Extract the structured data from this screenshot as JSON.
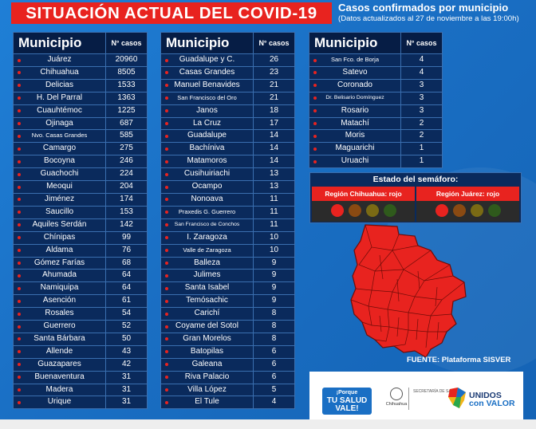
{
  "title": "SITUACIÓN ACTUAL DEL COVID-19",
  "subtitle": {
    "line1": "Casos confirmados por municipio",
    "line2": "(Datos actualizados al 27 de noviembre a las 19:00h)"
  },
  "table_headers": {
    "municipio": "Municipio",
    "casos": "N° casos"
  },
  "table1": [
    {
      "name": "Juárez",
      "cases": "20960"
    },
    {
      "name": "Chihuahua",
      "cases": "8505"
    },
    {
      "name": "Delicias",
      "cases": "1533"
    },
    {
      "name": "H. Del Parral",
      "cases": "1363"
    },
    {
      "name": "Cuauhtémoc",
      "cases": "1225"
    },
    {
      "name": "Ojinaga",
      "cases": "687"
    },
    {
      "name": "Nvo. Casas Grandes",
      "cases": "585"
    },
    {
      "name": "Camargo",
      "cases": "275"
    },
    {
      "name": "Bocoyna",
      "cases": "246"
    },
    {
      "name": "Guachochi",
      "cases": "224"
    },
    {
      "name": "Meoqui",
      "cases": "204"
    },
    {
      "name": "Jiménez",
      "cases": "174"
    },
    {
      "name": "Saucillo",
      "cases": "153"
    },
    {
      "name": "Aquiles Serdán",
      "cases": "142"
    },
    {
      "name": "Chínipas",
      "cases": "99"
    },
    {
      "name": "Aldama",
      "cases": "76"
    },
    {
      "name": "Gómez Farías",
      "cases": "68"
    },
    {
      "name": "Ahumada",
      "cases": "64"
    },
    {
      "name": "Namiquipa",
      "cases": "64"
    },
    {
      "name": "Asención",
      "cases": "61"
    },
    {
      "name": "Rosales",
      "cases": "54"
    },
    {
      "name": "Guerrero",
      "cases": "52"
    },
    {
      "name": "Santa Bárbara",
      "cases": "50"
    },
    {
      "name": "Allende",
      "cases": "43"
    },
    {
      "name": "Guazapares",
      "cases": "42"
    },
    {
      "name": "Buenaventura",
      "cases": "31"
    },
    {
      "name": "Madera",
      "cases": "31"
    },
    {
      "name": "Urique",
      "cases": "31"
    }
  ],
  "table2": [
    {
      "name": "Guadalupe y C.",
      "cases": "26"
    },
    {
      "name": "Casas Grandes",
      "cases": "23"
    },
    {
      "name": "Manuel Benavides",
      "cases": "21"
    },
    {
      "name": "San Francisco del Oro",
      "cases": "21"
    },
    {
      "name": "Janos",
      "cases": "18"
    },
    {
      "name": "La Cruz",
      "cases": "17"
    },
    {
      "name": "Guadalupe",
      "cases": "14"
    },
    {
      "name": "Bachíniva",
      "cases": "14"
    },
    {
      "name": "Matamoros",
      "cases": "14"
    },
    {
      "name": "Cusihuiriachi",
      "cases": "13"
    },
    {
      "name": "Ocampo",
      "cases": "13"
    },
    {
      "name": "Nonoava",
      "cases": "11"
    },
    {
      "name": "Praxedis G. Guerrero",
      "cases": "11"
    },
    {
      "name": "San Francisco de Conchos",
      "cases": "11"
    },
    {
      "name": "I. Zaragoza",
      "cases": "10"
    },
    {
      "name": "Valle de Zaragoza",
      "cases": "10"
    },
    {
      "name": "Balleza",
      "cases": "9"
    },
    {
      "name": "Julimes",
      "cases": "9"
    },
    {
      "name": "Santa Isabel",
      "cases": "9"
    },
    {
      "name": "Temósachic",
      "cases": "9"
    },
    {
      "name": "Carichí",
      "cases": "8"
    },
    {
      "name": "Coyame del Sotol",
      "cases": "8"
    },
    {
      "name": "Gran Morelos",
      "cases": "8"
    },
    {
      "name": "Batopilas",
      "cases": "6"
    },
    {
      "name": "Galeana",
      "cases": "6"
    },
    {
      "name": "Riva Palacio",
      "cases": "6"
    },
    {
      "name": "Villa López",
      "cases": "5"
    },
    {
      "name": "El Tule",
      "cases": "4"
    }
  ],
  "table3": [
    {
      "name": "San Fco. de Borja",
      "cases": "4"
    },
    {
      "name": "Satevo",
      "cases": "4"
    },
    {
      "name": "Coronado",
      "cases": "3"
    },
    {
      "name": "Dr. Belisario Domínguez",
      "cases": "3"
    },
    {
      "name": "Rosario",
      "cases": "3"
    },
    {
      "name": "Matachí",
      "cases": "2"
    },
    {
      "name": "Moris",
      "cases": "2"
    },
    {
      "name": "Maguarichi",
      "cases": "1"
    },
    {
      "name": "Uruachi",
      "cases": "1"
    }
  ],
  "semaforo": {
    "title": "Estado del semáforo:",
    "region1": "Región Chihuahua: rojo",
    "region2": "Región Juárez: rojo",
    "colors": {
      "active_red": "#e8231f",
      "dim_red": "#7a1a12",
      "orange": "#8a4a12",
      "yellow": "#7a6a14",
      "green": "#2f5a1c"
    }
  },
  "source": "FUENTE: Plataforma SISVER",
  "footer": {
    "campaign_line1": "¡Porque",
    "campaign_line2": "TU SALUD",
    "campaign_line3": "VALE!",
    "gov_name": "Chihuahua",
    "health_dept": "SECRETARÍA DE SALUD",
    "slogan_line1": "UNIDOS",
    "slogan_line2": "con VALOR"
  },
  "colors": {
    "background": "#1a6fc4",
    "title_bar": "#e8231f",
    "table_cell": "#0a2a5c",
    "header_cell": "#061d45",
    "map_fill": "#e8231f"
  }
}
